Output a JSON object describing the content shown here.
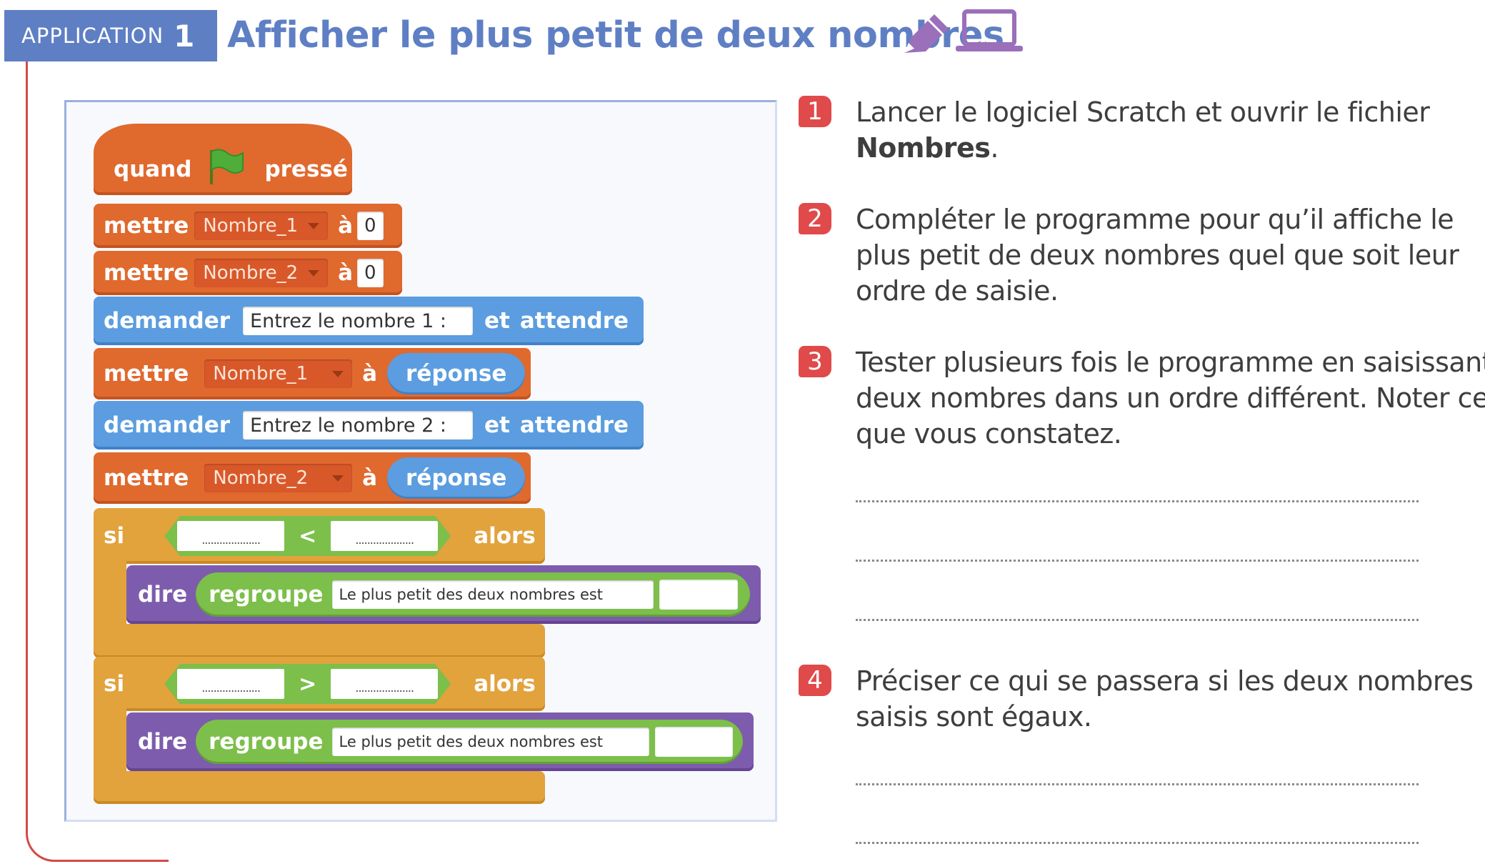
{
  "header": {
    "badge_label": "APPLICATION",
    "badge_number": "1",
    "title": "Afficher le plus petit de deux nombres",
    "icons": [
      "pencil-icon",
      "laptop-icon"
    ]
  },
  "colors": {
    "accent_blue": "#5f7fc4",
    "accent_red": "#e04a4a",
    "scratch_orange": "#e0692e",
    "scratch_blue": "#5b9de0",
    "scratch_control": "#e2a23c",
    "scratch_purple": "#7d5cad",
    "scratch_green": "#7cbf4a"
  },
  "scratch": {
    "hat": {
      "when": "quand",
      "pressed": "pressé",
      "icon": "green-flag-icon"
    },
    "set1": {
      "kw": "mettre",
      "var": "Nombre_1",
      "to": "à",
      "value": "0"
    },
    "set2": {
      "kw": "mettre",
      "var": "Nombre_2",
      "to": "à",
      "value": "0"
    },
    "ask1": {
      "kw": "demander",
      "prompt": "Entrez le nombre 1 :",
      "and": "et",
      "wait": "attendre"
    },
    "set3": {
      "kw": "mettre",
      "var": "Nombre_1",
      "to": "à",
      "reporter": "réponse"
    },
    "ask2": {
      "kw": "demander",
      "prompt": "Entrez le nombre 2 :",
      "and": "et",
      "wait": "attendre"
    },
    "set4": {
      "kw": "mettre",
      "var": "Nombre_2",
      "to": "à",
      "reporter": "réponse"
    },
    "if1": {
      "kw": "si",
      "blank_a": "....................",
      "op": "<",
      "blank_b": "....................",
      "then": "alors"
    },
    "say1": {
      "kw": "dire",
      "join": "regroupe",
      "text": "Le plus petit des deux nombres est"
    },
    "if2": {
      "kw": "si",
      "blank_a": "....................",
      "op": ">",
      "blank_b": "....................",
      "then": "alors"
    },
    "say2": {
      "kw": "dire",
      "join": "regroupe",
      "text": "Le plus petit des deux nombres est"
    }
  },
  "questions": [
    {
      "number": "1",
      "text_before": "Lancer le logiciel Scratch et ouvrir le fichier ",
      "bold": "Nombres",
      "text_after": "."
    },
    {
      "number": "2",
      "text": "Compléter le programme pour qu’il affiche le plus petit de deux nombres quel que soit leur ordre de saisie."
    },
    {
      "number": "3",
      "text": "Tester plusieurs fois le programme en saisissant deux nombres dans un ordre différent. Noter ce que vous constatez."
    },
    {
      "number": "4",
      "text": "Préciser ce qui se passera si les deux nombres saisis sont égaux."
    }
  ]
}
